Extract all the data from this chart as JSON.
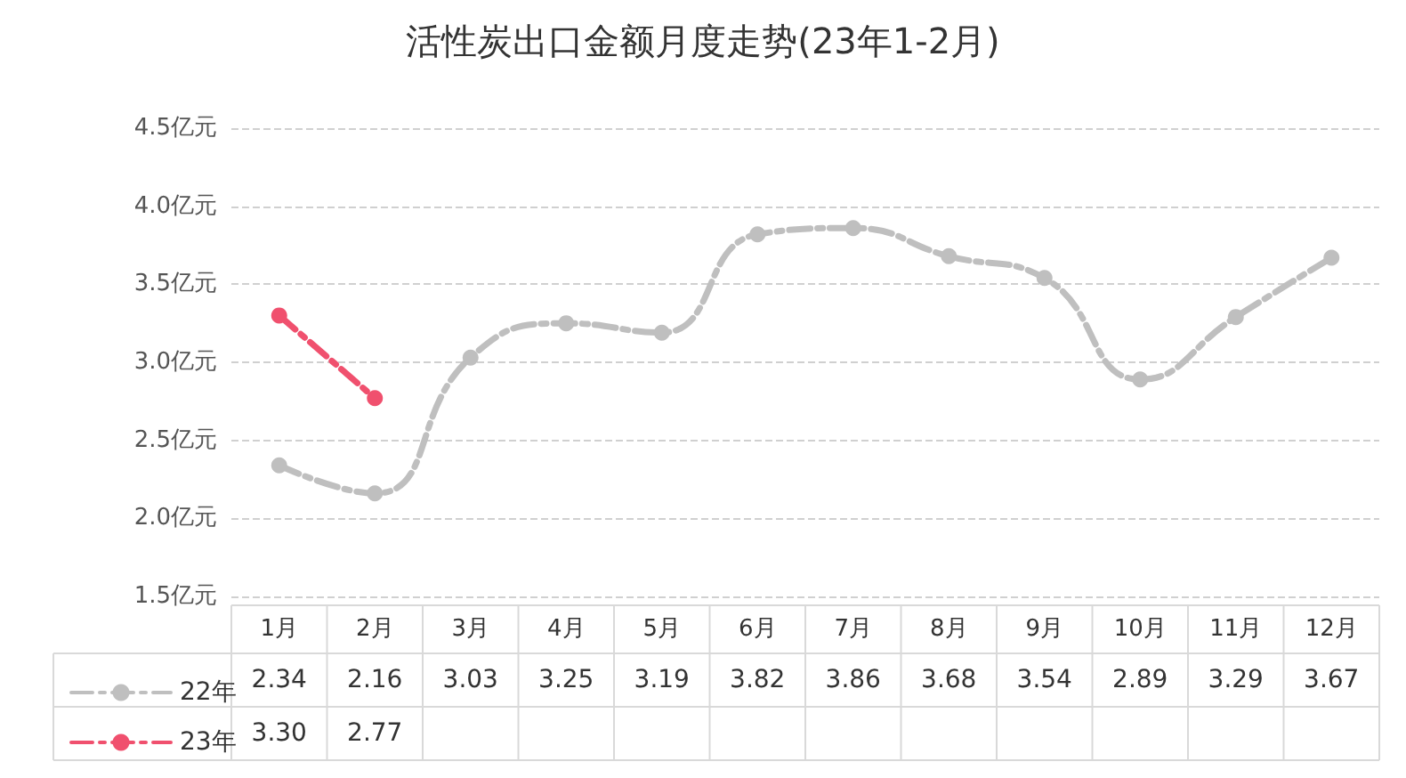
{
  "chart_data": {
    "type": "line",
    "title": "活性炭出口金额月度走势(23年1-2月)",
    "categories": [
      "1月",
      "2月",
      "3月",
      "4月",
      "5月",
      "6月",
      "7月",
      "8月",
      "9月",
      "10月",
      "11月",
      "12月"
    ],
    "series": [
      {
        "name": "22年",
        "color": "#bfbfbf",
        "values": [
          2.34,
          2.16,
          3.03,
          3.25,
          3.19,
          3.82,
          3.86,
          3.68,
          3.54,
          2.89,
          3.29,
          3.67
        ],
        "value_labels": [
          "2.34",
          "2.16",
          "3.03",
          "3.25",
          "3.19",
          "3.82",
          "3.86",
          "3.68",
          "3.54",
          "2.89",
          "3.29",
          "3.67"
        ]
      },
      {
        "name": "23年",
        "color": "#f0506e",
        "values": [
          3.3,
          2.77,
          null,
          null,
          null,
          null,
          null,
          null,
          null,
          null,
          null,
          null
        ],
        "value_labels": [
          "3.30",
          "2.77",
          null,
          null,
          null,
          null,
          null,
          null,
          null,
          null,
          null,
          null
        ]
      }
    ],
    "ylim": [
      1.5,
      4.5
    ],
    "yticks": [
      {
        "value": 1.5,
        "label": "1.5亿元"
      },
      {
        "value": 2,
        "label": "2.0亿元"
      },
      {
        "value": 2.5,
        "label": "2.5亿元"
      },
      {
        "value": 3,
        "label": "3.0亿元"
      },
      {
        "value": 3.5,
        "label": "3.5亿元"
      },
      {
        "value": 4,
        "label": "4.0亿元"
      },
      {
        "value": 4.5,
        "label": "4.5亿元"
      }
    ],
    "grid": "y",
    "legend": "bottom left",
    "marker": "circle",
    "line_style": "dashed"
  }
}
